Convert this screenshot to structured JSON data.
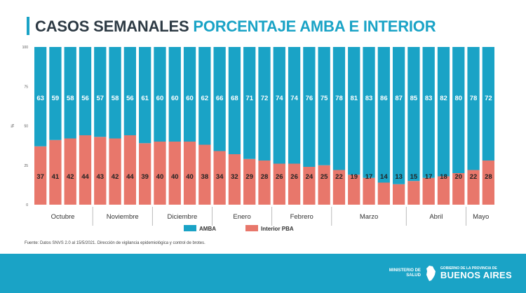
{
  "header": {
    "title_main": "CASOS SEMANALES",
    "title_accent": "PORCENTAJE AMBA E INTERIOR"
  },
  "chart_data": {
    "type": "bar",
    "stacked": true,
    "normalized": "percent",
    "ylabel": "%",
    "ylim": [
      0,
      100
    ],
    "yticks": [
      0,
      25,
      50,
      75,
      100
    ],
    "months": [
      {
        "label": "Octubre",
        "weeks": 4
      },
      {
        "label": "Noviembre",
        "weeks": 4
      },
      {
        "label": "Diciembre",
        "weeks": 4
      },
      {
        "label": "Enero",
        "weeks": 4
      },
      {
        "label": "Febrero",
        "weeks": 4
      },
      {
        "label": "Marzo",
        "weeks": 5
      },
      {
        "label": "Abril",
        "weeks": 4
      },
      {
        "label": "Mayo",
        "weeks": 2
      }
    ],
    "series": [
      {
        "name": "Interior PBA",
        "color": "#e8776b",
        "values": [
          37,
          41,
          42,
          44,
          43,
          42,
          44,
          39,
          40,
          40,
          40,
          38,
          34,
          32,
          29,
          28,
          26,
          26,
          24,
          25,
          22,
          19,
          17,
          14,
          13,
          15,
          17,
          18,
          20,
          22,
          28
        ]
      },
      {
        "name": "AMBA",
        "color": "#1aa3c6",
        "values": [
          63,
          59,
          58,
          56,
          57,
          58,
          56,
          61,
          60,
          60,
          60,
          62,
          66,
          68,
          71,
          72,
          74,
          74,
          76,
          75,
          78,
          81,
          83,
          86,
          87,
          85,
          83,
          82,
          80,
          78,
          72
        ]
      }
    ],
    "legend": [
      "AMBA",
      "Interior PBA"
    ],
    "legend_position": "bottom"
  },
  "source_note": "Fuente: Datos SNVS 2.0 al 15/5/2021. Dirección de vigilancia epidemiológica y control de brotes.",
  "footer": {
    "ministry": [
      "MINISTERIO DE",
      "SALUD"
    ],
    "gov_small": "GOBIERNO DE LA PROVINCIA DE",
    "gov_big": "BUENOS AIRES"
  }
}
